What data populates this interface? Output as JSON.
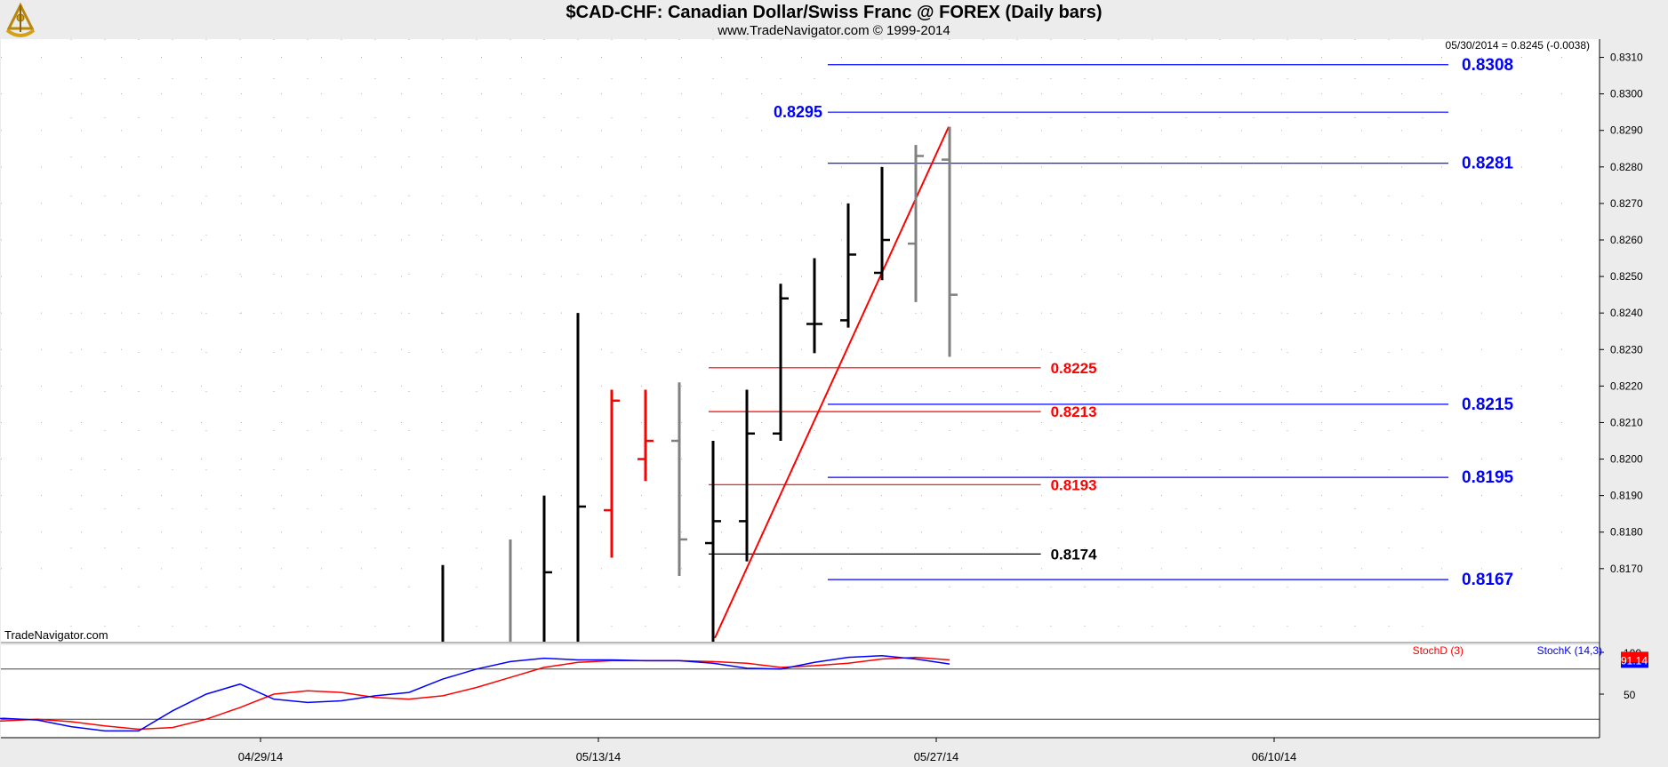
{
  "header": {
    "title": "$CAD-CHF:  Canadian Dollar/Swiss Franc @ FOREX  (Daily bars)",
    "subtitle": "www.TradeNavigator.com © 1999-2014"
  },
  "watermark": "TradeNavigator.com",
  "last_quote": "05/30/2014 = 0.8245 (-0.0038)",
  "colors": {
    "up_bar": "#000000",
    "down_bar": "#ff0000",
    "neutral_bar": "#808080",
    "blue_level": "#0000ff",
    "red_level": "#e00000",
    "trendline": "#ff0000",
    "stochd": "#ff0000",
    "stochk": "#0000ff",
    "background": "#ffffff"
  },
  "chart_data": [
    {
      "type": "ohlc",
      "panel": "price",
      "ylim": [
        0.815,
        0.8315
      ],
      "y_ticks": [
        "0.8170",
        "0.8180",
        "0.8190",
        "0.8200",
        "0.8210",
        "0.8220",
        "0.8230",
        "0.8240",
        "0.8250",
        "0.8260",
        "0.8270",
        "0.8280",
        "0.8290",
        "0.8300",
        "0.8310"
      ],
      "x_ticks": [
        {
          "label": "04/29/14",
          "bar": 0
        },
        {
          "label": "05/13/14",
          "bar": 10
        },
        {
          "label": "05/27/14",
          "bar": 20
        },
        {
          "label": "06/10/14",
          "bar": 30
        }
      ],
      "bars": [
        {
          "bar": 6,
          "high": 0.8171,
          "low": 0.815,
          "open": null,
          "close": null,
          "color": "black"
        },
        {
          "bar": 8,
          "high": 0.8178,
          "low": 0.815,
          "open": null,
          "close": null,
          "color": "gray"
        },
        {
          "bar": 9,
          "high": 0.819,
          "low": 0.815,
          "open": null,
          "close": 0.8169,
          "color": "black"
        },
        {
          "bar": 10,
          "high": 0.824,
          "low": 0.815,
          "open": null,
          "close": 0.8187,
          "color": "black"
        },
        {
          "bar": 11,
          "high": 0.8219,
          "low": 0.8173,
          "open": 0.8186,
          "close": 0.8216,
          "color": "red"
        },
        {
          "bar": 12,
          "high": 0.8219,
          "low": 0.8194,
          "open": 0.82,
          "close": 0.8205,
          "color": "red"
        },
        {
          "bar": 13,
          "high": 0.8221,
          "low": 0.8168,
          "open": 0.8205,
          "close": 0.8178,
          "color": "gray"
        },
        {
          "bar": 14,
          "high": 0.8205,
          "low": 0.815,
          "open": 0.8177,
          "close": 0.8183,
          "color": "black"
        },
        {
          "bar": 15,
          "high": 0.8219,
          "low": 0.8172,
          "open": 0.8183,
          "close": 0.8207,
          "color": "black"
        },
        {
          "bar": 16,
          "high": 0.8248,
          "low": 0.8205,
          "open": 0.8207,
          "close": 0.8244,
          "color": "black"
        },
        {
          "bar": 17,
          "high": 0.8255,
          "low": 0.8229,
          "open": 0.8237,
          "close": 0.8237,
          "color": "black"
        },
        {
          "bar": 18,
          "high": 0.827,
          "low": 0.8236,
          "open": 0.8238,
          "close": 0.8256,
          "color": "black"
        },
        {
          "bar": 19,
          "high": 0.828,
          "low": 0.8249,
          "open": 0.8251,
          "close": 0.826,
          "color": "black"
        },
        {
          "bar": 20,
          "high": 0.8286,
          "low": 0.8243,
          "open": 0.8259,
          "close": 0.8283,
          "color": "gray"
        },
        {
          "bar": 21,
          "high": 0.8291,
          "low": 0.8228,
          "open": 0.8282,
          "close": 0.8245,
          "color": "gray"
        }
      ],
      "levels": [
        {
          "value": 0.8308,
          "label": "0.8308",
          "color": "blue",
          "from_bar": 17,
          "to_bar": 35.5,
          "label_side": "right"
        },
        {
          "value": 0.8295,
          "label": "0.8295",
          "color": "blue",
          "from_bar": 17,
          "to_bar": 35.5,
          "label_side": "left"
        },
        {
          "value": 0.8281,
          "label": "0.8281",
          "color": "blue",
          "from_bar": 17,
          "to_bar": 35.5,
          "label_side": "right"
        },
        {
          "value": 0.8225,
          "label": "0.8225",
          "color": "red",
          "from_bar": 14,
          "to_bar": 23.7,
          "label_side": "right"
        },
        {
          "value": 0.8215,
          "label": "0.8215",
          "color": "blue",
          "from_bar": 17,
          "to_bar": 35.5,
          "label_side": "right"
        },
        {
          "value": 0.8213,
          "label": "0.8213",
          "color": "red",
          "from_bar": 14,
          "to_bar": 23.7,
          "label_side": "right"
        },
        {
          "value": 0.8195,
          "label": "0.8195",
          "color": "blue",
          "from_bar": 17,
          "to_bar": 35.5,
          "label_side": "right"
        },
        {
          "value": 0.8193,
          "label": "0.8193",
          "color": "red",
          "from_bar": 14,
          "to_bar": 23.7,
          "label_side": "right"
        },
        {
          "value": 0.8174,
          "label": "0.8174",
          "color": "black",
          "from_bar": 14,
          "to_bar": 23.7,
          "label_side": "right"
        },
        {
          "value": 0.8167,
          "label": "0.8167",
          "color": "blue",
          "from_bar": 17,
          "to_bar": 35.5,
          "label_side": "right"
        }
      ],
      "trendline": {
        "from": {
          "bar": 14,
          "value": 0.8151
        },
        "to": {
          "bar": 21,
          "value": 0.8291
        }
      }
    },
    {
      "type": "line",
      "panel": "stochastic",
      "ylim": [
        0,
        100
      ],
      "y_ticks": [
        "50",
        "100"
      ],
      "reference_lines": [
        20,
        80
      ],
      "last_value_label": "91.14",
      "x": [
        -9,
        -8,
        -7,
        -6,
        -5,
        -4,
        -3,
        -2,
        -1,
        0,
        1,
        2,
        3,
        4,
        5,
        6,
        7,
        8,
        9,
        10,
        11,
        12,
        13,
        14,
        15,
        16,
        17,
        18,
        19,
        20,
        21
      ],
      "series": [
        {
          "name": "StochD (3)",
          "color": "red",
          "values": [
            14,
            16,
            18,
            20,
            17,
            12,
            8,
            10,
            20,
            34,
            50,
            54,
            52,
            46,
            44,
            48,
            58,
            70,
            82,
            88,
            90,
            90,
            90,
            89,
            87,
            82,
            84,
            87,
            92,
            94,
            91
          ]
        },
        {
          "name": "StochK (14,3)",
          "color": "blue",
          "values": [
            12,
            18,
            21,
            19,
            11,
            6,
            6,
            30,
            50,
            62,
            44,
            40,
            42,
            48,
            52,
            68,
            80,
            89,
            93,
            91,
            91,
            90,
            90,
            87,
            81,
            80,
            88,
            94,
            96,
            92,
            86
          ]
        }
      ]
    }
  ]
}
